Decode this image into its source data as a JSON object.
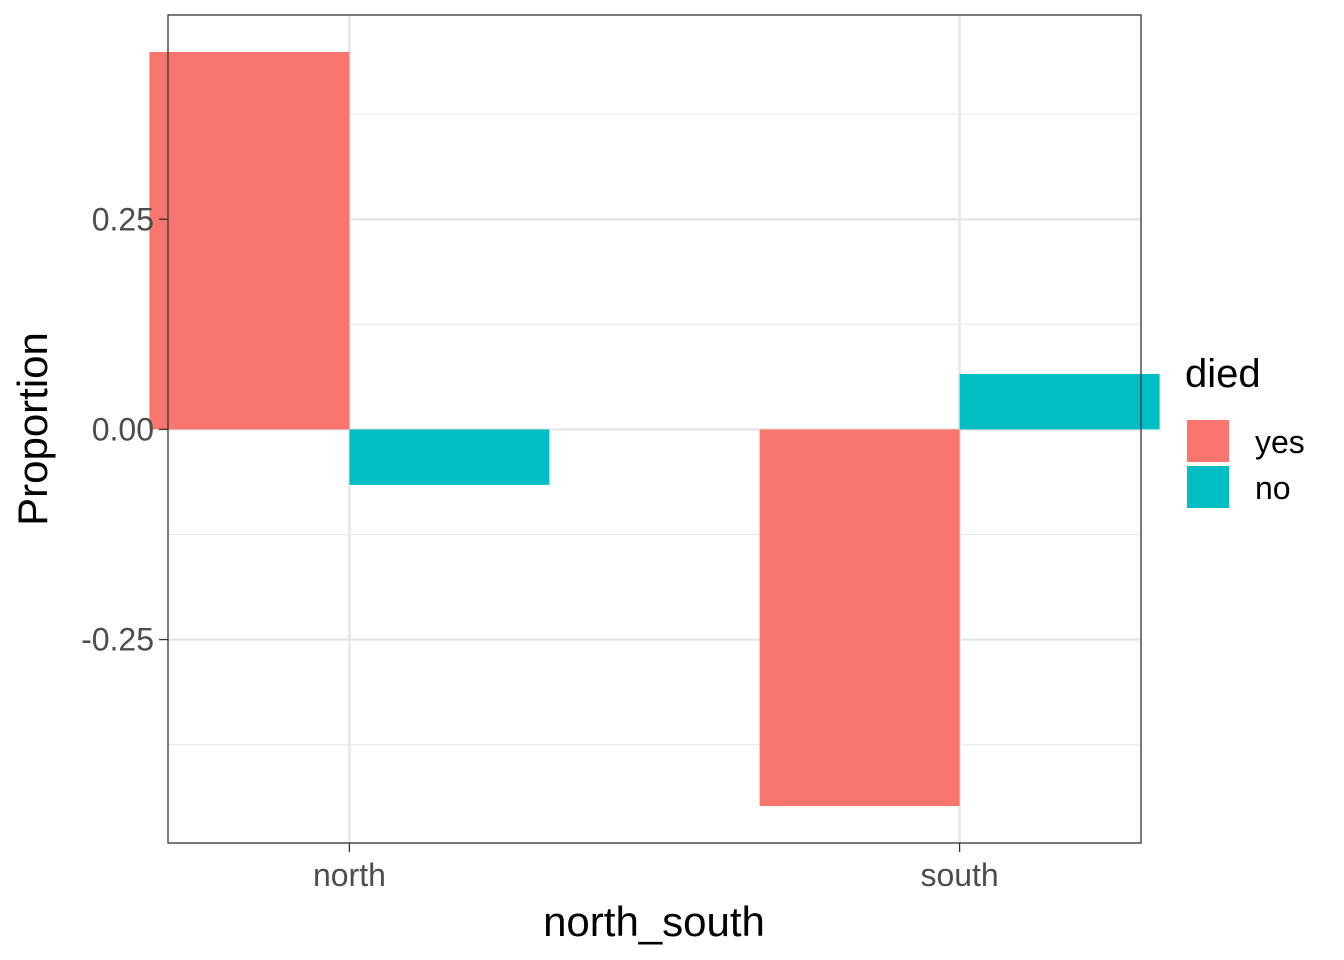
{
  "chart_data": {
    "type": "bar",
    "xlabel": "north_south",
    "ylabel": "Proportion",
    "categories": [
      "north",
      "south"
    ],
    "series": [
      {
        "name": "yes",
        "color": "#F8766D",
        "values": [
          0.449,
          -0.448
        ]
      },
      {
        "name": "no",
        "color": "#00BFC4",
        "values": [
          -0.066,
          0.066
        ]
      }
    ],
    "ylim": [
      -0.492,
      0.493
    ],
    "yticks": [
      {
        "value": 0.25,
        "label": "0.25"
      },
      {
        "value": 0.0,
        "label": "0.00"
      },
      {
        "value": -0.25,
        "label": "-0.25"
      }
    ],
    "y_minor_ticks": [
      0.375,
      0.125,
      -0.125,
      -0.375
    ],
    "legend": {
      "title": "died",
      "position": "right"
    },
    "grid": true,
    "panel_border": true
  }
}
